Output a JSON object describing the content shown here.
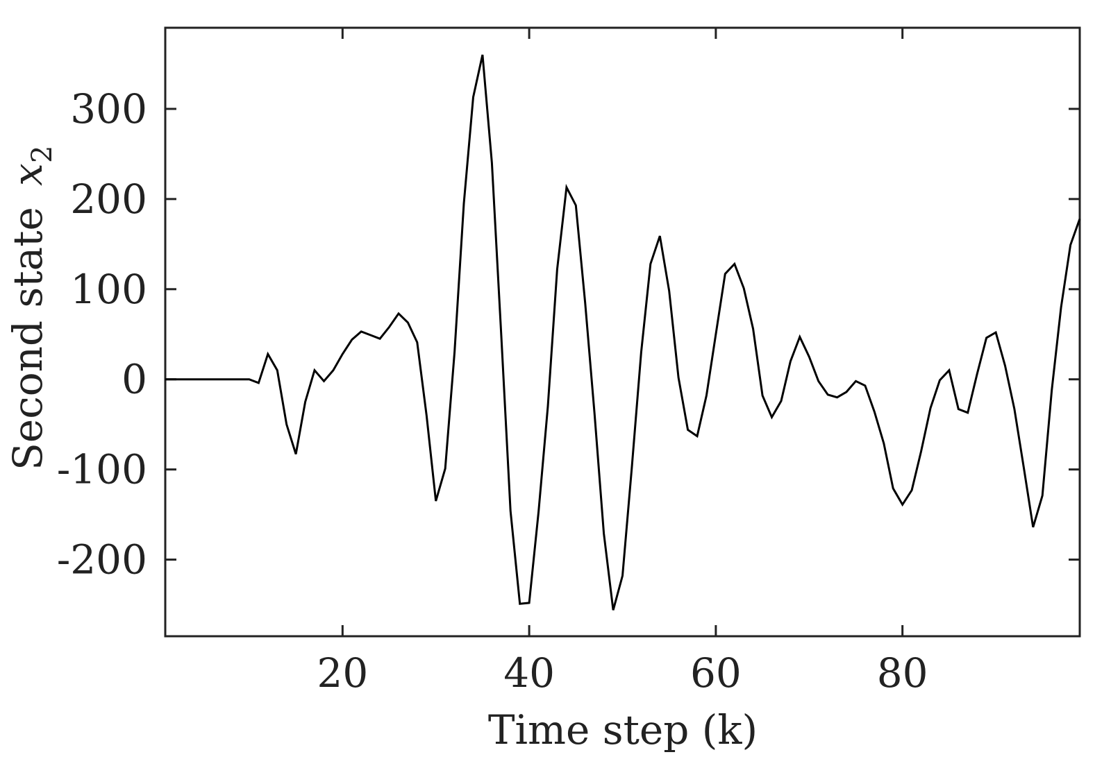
{
  "chart_data": {
    "type": "line",
    "title": "",
    "xlabel": "Time step (k)",
    "ylabel": "Second state",
    "ylabel_symbol": "x",
    "ylabel_subscript": "2",
    "xlim": [
      1,
      99
    ],
    "ylim": [
      -285,
      390
    ],
    "x_ticks": [
      20,
      40,
      60,
      80
    ],
    "y_ticks": [
      -200,
      -100,
      0,
      100,
      200,
      300
    ],
    "x_tick_labels": [
      "20",
      "40",
      "60",
      "80"
    ],
    "y_tick_labels": [
      "-200",
      "-100",
      "0",
      "100",
      "200",
      "300"
    ],
    "grid": false,
    "line_color": "#000000",
    "series": [
      {
        "x": [
          1,
          2,
          3,
          4,
          5,
          6,
          7,
          8,
          9,
          10,
          11,
          12,
          13,
          14,
          15,
          16,
          17,
          18,
          19,
          20,
          21,
          22,
          23,
          24,
          25,
          26,
          27,
          28,
          29,
          30,
          31,
          32,
          33,
          34,
          35,
          36,
          37,
          38,
          39,
          40,
          41,
          42,
          43,
          44,
          45,
          46,
          47,
          48,
          49,
          50,
          51,
          52,
          53,
          54,
          55,
          56,
          57,
          58,
          59,
          60,
          61,
          62,
          63,
          64,
          65,
          66,
          67,
          68,
          69,
          70,
          71,
          72,
          73,
          74,
          75,
          76,
          77,
          78,
          79,
          80,
          81,
          82,
          83,
          84,
          85,
          86,
          87,
          88,
          89,
          90,
          91,
          92,
          93,
          94,
          95,
          96,
          97,
          98,
          99
        ],
        "values": [
          0,
          0,
          0,
          0,
          0,
          0,
          0,
          0,
          0,
          0,
          -4,
          28,
          10,
          -50,
          -83,
          -25,
          10,
          -2,
          10,
          28,
          44,
          53,
          49,
          45,
          58,
          73,
          63,
          41,
          -40,
          -135,
          -99,
          30,
          195,
          313,
          360,
          240,
          50,
          -146,
          -249,
          -248,
          -147,
          -30,
          122,
          213,
          193,
          85,
          -38,
          -171,
          -256,
          -218,
          -98,
          30,
          128,
          159,
          98,
          2,
          -56,
          -63,
          -18,
          50,
          117,
          128,
          101,
          56,
          -18,
          -42,
          -24,
          20,
          47,
          25,
          -2,
          -17,
          -20,
          -14,
          -2,
          -7,
          -36,
          -71,
          -121,
          -139,
          -123,
          -80,
          -32,
          -1,
          10,
          -33,
          -37,
          6,
          46,
          52,
          15,
          -33,
          -98,
          -164,
          -129,
          -12,
          80,
          149,
          178
        ]
      }
    ]
  }
}
